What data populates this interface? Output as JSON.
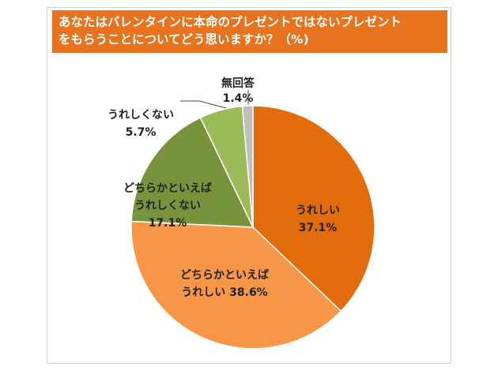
{
  "title_lines": [
    "あなたはバレンタインに本命のプレゼントではないプレゼント",
    "をもらうことについてどう思いますか？（%)"
  ],
  "chart_data": {
    "type": "pie",
    "title": "あなたはバレンタインに本命のプレゼントではないプレゼントをもらうことについてどう思いますか？（%)",
    "slices": [
      {
        "label_lines": [
          "うれしい",
          "37.1%"
        ],
        "value": 37.1,
        "color": "#e36c0a"
      },
      {
        "label_lines": [
          "どちらかといえば",
          "うれしい 38.6%"
        ],
        "value": 38.6,
        "color": "#f79646"
      },
      {
        "label_lines": [
          "どちらかといえば",
          "うれしくない",
          "17.1%"
        ],
        "value": 17.1,
        "color": "#77933c"
      },
      {
        "label_lines": [
          "うれしくない",
          "5.7%"
        ],
        "value": 5.7,
        "color": "#9bbb59"
      },
      {
        "label_lines": [
          "無回答",
          "1.4%"
        ],
        "value": 1.4,
        "color": "#bfbfbf"
      }
    ],
    "start_angle_deg": 0,
    "direction": "clockwise"
  }
}
